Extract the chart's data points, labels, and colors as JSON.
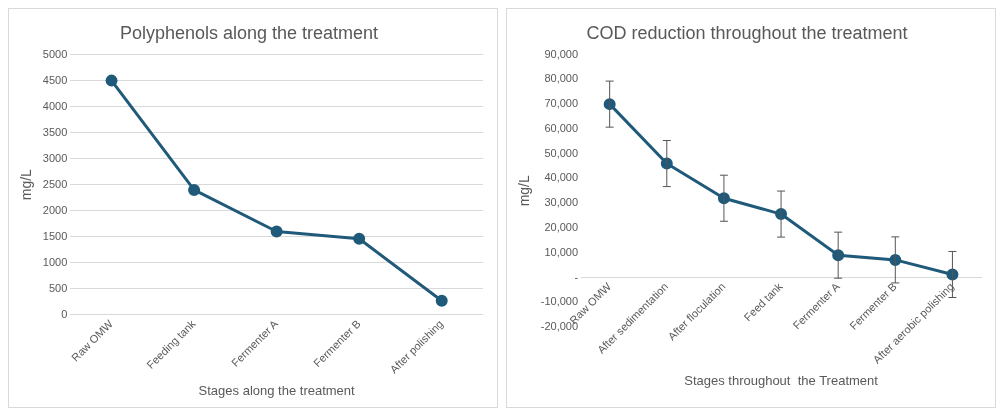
{
  "chart_data": [
    {
      "type": "line",
      "title": "Polyphenols along the treatment",
      "xlabel": "Stages along the treatment",
      "ylabel": "mg/L",
      "categories": [
        "Raw OMW",
        "Feeding tank",
        "Fermenter A",
        "Fermenter B",
        "After polishing"
      ],
      "series": [
        {
          "color": "#1f5a7a",
          "values": [
            4500,
            2400,
            1600,
            1460,
            270
          ]
        }
      ],
      "ylim": [
        0,
        5000
      ],
      "yticks": [
        0,
        500,
        1000,
        1500,
        2000,
        2500,
        3000,
        3500,
        4000,
        4500,
        5000
      ],
      "grid": "y",
      "legend": false,
      "marker": "circle",
      "line_style": "solid"
    },
    {
      "type": "line",
      "title": "COD reduction throughout the treatment",
      "xlabel": "Stages throughout  the Treatment",
      "ylabel": "mg/L",
      "categories": [
        "Raw OMW",
        "After sedimentation",
        "After floculation",
        "Feed tank",
        "Fermenter A",
        "Fermenter B",
        "After aerobic polishing"
      ],
      "series": [
        {
          "color": "#1f5a7a",
          "values": [
            70000,
            46000,
            32000,
            25600,
            9000,
            7100,
            1200
          ],
          "errors": [
            9300,
            9300,
            9300,
            9300,
            9300,
            9300,
            9300
          ]
        }
      ],
      "ylim": [
        -20000,
        90000
      ],
      "yticks": [
        {
          "value": -20000,
          "label": "-20,000"
        },
        {
          "value": -10000,
          "label": "-10,000"
        },
        {
          "value": 0,
          "label": "-"
        },
        {
          "value": 10000,
          "label": "10,000"
        },
        {
          "value": 20000,
          "label": "20,000"
        },
        {
          "value": 30000,
          "label": "30,000"
        },
        {
          "value": 40000,
          "label": "40,000"
        },
        {
          "value": 50000,
          "label": "50,000"
        },
        {
          "value": 60000,
          "label": "60,000"
        },
        {
          "value": 70000,
          "label": "70,000"
        },
        {
          "value": 80000,
          "label": "80,000"
        },
        {
          "value": 90000,
          "label": "90,000"
        }
      ],
      "grid": false,
      "legend": false,
      "marker": "circle",
      "line_style": "solid"
    }
  ]
}
